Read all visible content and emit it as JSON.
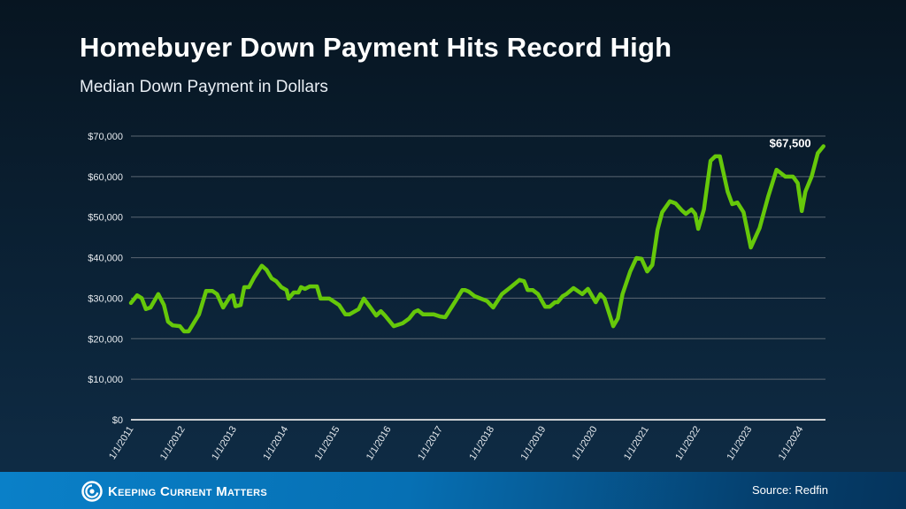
{
  "header": {
    "title": "Homebuyer Down Payment Hits Record High",
    "subtitle": "Median Down Payment in Dollars"
  },
  "footer": {
    "brand": "Keeping Current Matters",
    "source": "Source: Redfin"
  },
  "colors": {
    "line": "#66c80a",
    "grid": "#5b6672",
    "axis": "#c8ccd0"
  },
  "chart_data": {
    "type": "line",
    "title": "Homebuyer Down Payment Hits Record High",
    "subtitle": "Median Down Payment in Dollars",
    "xlabel": "",
    "ylabel": "",
    "ylim": [
      0,
      70000
    ],
    "xlim": [
      2011,
      2024.48
    ],
    "grid": true,
    "yticks": [
      0,
      10000,
      20000,
      30000,
      40000,
      50000,
      60000,
      70000
    ],
    "ytick_labels": [
      "$0",
      "$10,000",
      "$20,000",
      "$30,000",
      "$40,000",
      "$50,000",
      "$60,000",
      "$70,000"
    ],
    "xticks": [
      2011,
      2012,
      2013,
      2014,
      2015,
      2016,
      2017,
      2018,
      2019,
      2020,
      2021,
      2022,
      2023,
      2024
    ],
    "xtick_labels": [
      "1/1/2011",
      "1/1/2012",
      "1/1/2013",
      "1/1/2014",
      "1/1/2015",
      "1/1/2016",
      "1/1/2017",
      "1/1/2018",
      "1/1/2019",
      "1/1/2020",
      "1/1/2021",
      "1/1/2022",
      "1/1/2023",
      "1/1/2024"
    ],
    "annotation": "$67,500",
    "series": [
      {
        "name": "Median Down Payment",
        "x": [
          2011.0,
          2011.12,
          2011.21,
          2011.29,
          2011.38,
          2011.53,
          2011.64,
          2011.72,
          2011.81,
          2011.95,
          2012.03,
          2012.12,
          2012.32,
          2012.46,
          2012.58,
          2012.67,
          2012.79,
          2012.93,
          2012.98,
          2013.03,
          2013.13,
          2013.2,
          2013.29,
          2013.39,
          2013.54,
          2013.63,
          2013.73,
          2013.82,
          2013.92,
          2014.02,
          2014.06,
          2014.16,
          2014.25,
          2014.3,
          2014.38,
          2014.47,
          2014.61,
          2014.68,
          2014.85,
          2015.04,
          2015.16,
          2015.24,
          2015.42,
          2015.52,
          2015.67,
          2015.76,
          2015.85,
          2015.93,
          2016.1,
          2016.27,
          2016.4,
          2016.5,
          2016.57,
          2016.67,
          2016.88,
          2017.0,
          2017.1,
          2017.22,
          2017.32,
          2017.43,
          2017.49,
          2017.56,
          2017.67,
          2017.91,
          2018.03,
          2018.2,
          2018.37,
          2018.54,
          2018.63,
          2018.7,
          2018.8,
          2018.9,
          2019.04,
          2019.13,
          2019.23,
          2019.28,
          2019.38,
          2019.45,
          2019.59,
          2019.76,
          2019.87,
          2020.02,
          2020.11,
          2020.19,
          2020.36,
          2020.45,
          2020.54,
          2020.69,
          2020.81,
          2020.91,
          2021.02,
          2021.12,
          2021.22,
          2021.31,
          2021.46,
          2021.57,
          2021.69,
          2021.77,
          2021.88,
          2021.95,
          2022.01,
          2022.12,
          2022.25,
          2022.34,
          2022.43,
          2022.58,
          2022.67,
          2022.77,
          2022.89,
          2023.03,
          2023.2,
          2023.37,
          2023.53,
          2023.7,
          2023.85,
          2023.94,
          2024.02,
          2024.09,
          2024.21,
          2024.33,
          2024.44
        ],
        "values": [
          28800,
          30700,
          30000,
          27300,
          27700,
          31000,
          28300,
          24200,
          23300,
          23100,
          21800,
          21800,
          26000,
          31800,
          31800,
          31000,
          27700,
          30500,
          30700,
          28000,
          28300,
          32700,
          32700,
          35100,
          38000,
          37000,
          34900,
          34200,
          32700,
          32000,
          29900,
          31400,
          31400,
          32700,
          32300,
          32900,
          32900,
          29900,
          29900,
          28300,
          26000,
          26000,
          27300,
          29900,
          27300,
          25700,
          26800,
          25700,
          23100,
          23800,
          25000,
          26600,
          27000,
          26000,
          26000,
          25500,
          25300,
          27700,
          29700,
          32000,
          32000,
          31600,
          30500,
          29300,
          27700,
          31000,
          32700,
          34500,
          34200,
          32000,
          32000,
          31000,
          27900,
          27900,
          29000,
          29000,
          30500,
          31000,
          32500,
          31000,
          32300,
          29000,
          31000,
          29900,
          23100,
          25000,
          31000,
          36600,
          39900,
          39700,
          36600,
          38200,
          46900,
          51200,
          53900,
          53400,
          51700,
          50800,
          51900,
          50800,
          47100,
          51900,
          63900,
          65000,
          65000,
          56300,
          53200,
          53600,
          51200,
          42500,
          47300,
          55200,
          61700,
          60000,
          60000,
          58400,
          51500,
          56300,
          60000,
          65800,
          67500
        ]
      }
    ]
  }
}
